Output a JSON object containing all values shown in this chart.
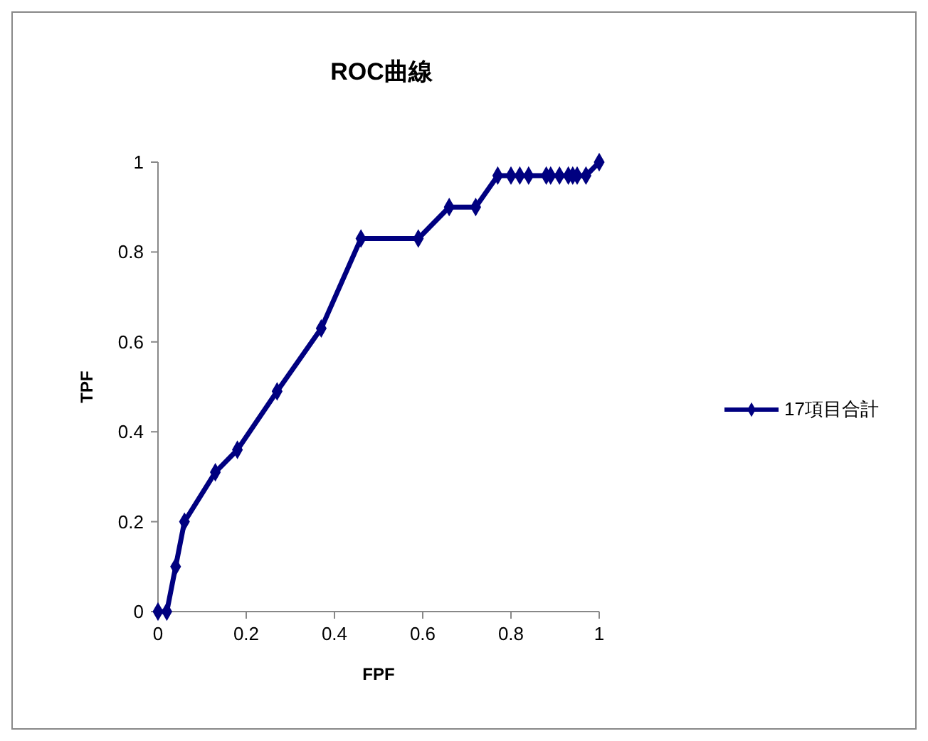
{
  "chart_data": {
    "type": "line",
    "title": "ROC曲線",
    "xlabel": "FPF",
    "ylabel": "TPF",
    "xlim": [
      0,
      1
    ],
    "xticks": [
      0,
      0.2,
      0.4,
      0.6,
      0.8,
      1
    ],
    "ylim": [
      0,
      1
    ],
    "yticks": [
      0,
      0.2,
      0.4,
      0.6,
      0.8,
      1
    ],
    "grid": false,
    "legend": "right",
    "marker": "diamond",
    "line_style": "solid",
    "series": [
      {
        "name": "17項目合計",
        "color": "#000080",
        "x": [
          0,
          0.02,
          0.04,
          0.06,
          0.13,
          0.18,
          0.27,
          0.37,
          0.46,
          0.59,
          0.66,
          0.72,
          0.77,
          0.8,
          0.82,
          0.84,
          0.88,
          0.89,
          0.91,
          0.93,
          0.94,
          0.95,
          0.97,
          1
        ],
        "values": [
          0,
          0,
          0.1,
          0.2,
          0.31,
          0.36,
          0.49,
          0.63,
          0.83,
          0.83,
          0.9,
          0.9,
          0.97,
          0.97,
          0.97,
          0.97,
          0.97,
          0.97,
          0.97,
          0.97,
          0.97,
          0.97,
          0.97,
          1
        ]
      }
    ]
  }
}
